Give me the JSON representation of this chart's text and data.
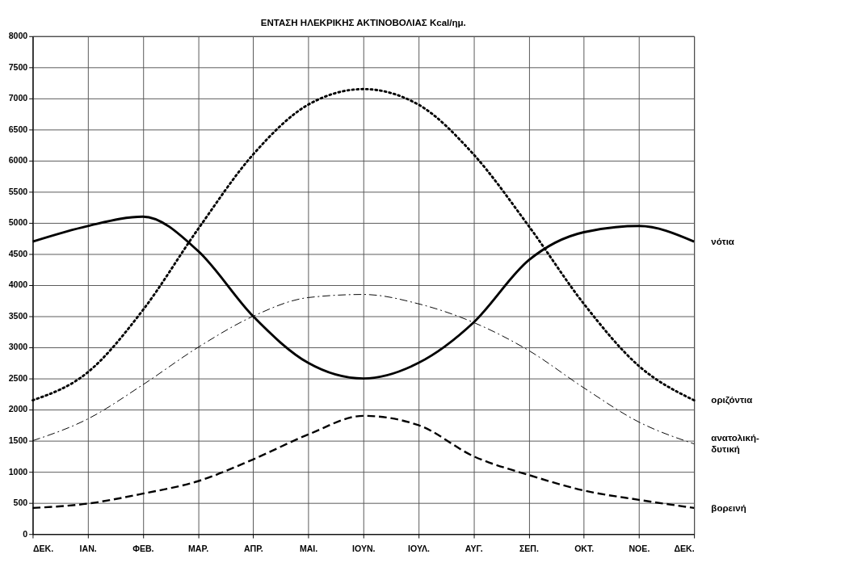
{
  "chart_data": {
    "type": "line",
    "title": "ΕΝΤΑΣΗ ΗΛΕΚΡΙΚΗΣ ΑΚΤΙΝΟΒΟΛΙΑΣ Kcal/ημ.",
    "categories": [
      "ΔΕΚ.",
      "ΙΑΝ.",
      "ΦΕΒ.",
      "ΜΑΡ.",
      "ΑΠΡ.",
      "ΜΑΙ.",
      "ΙΟΥΝ.",
      "ΙΟΥΛ.",
      "ΑΥΓ.",
      "ΣΕΠ.",
      "ΟΚΤ.",
      "ΝΟΕ.",
      "ΔΕΚ."
    ],
    "series": [
      {
        "name": "νότια",
        "color": "#000000",
        "line_style": "solid",
        "values": [
          4700,
          4950,
          5100,
          4550,
          3500,
          2750,
          2500,
          2750,
          3400,
          4400,
          4850,
          4950,
          4700
        ]
      },
      {
        "name": "οριζόντια",
        "color": "#000000",
        "line_style": "dotted",
        "values": [
          2150,
          2600,
          3600,
          4900,
          6100,
          6900,
          7150,
          6900,
          6100,
          4950,
          3700,
          2700,
          2150
        ]
      },
      {
        "name": "ανατολική-δυτική",
        "color": "#000000",
        "line_style": "dashdot",
        "values": [
          1500,
          1850,
          2400,
          3000,
          3500,
          3800,
          3850,
          3700,
          3400,
          2950,
          2350,
          1800,
          1450
        ]
      },
      {
        "name": "βορεινή",
        "color": "#000000",
        "line_style": "dashed",
        "values": [
          420,
          490,
          650,
          850,
          1200,
          1600,
          1900,
          1750,
          1250,
          950,
          700,
          550,
          420
        ]
      }
    ],
    "ylim": [
      0,
      8000
    ],
    "yticks": [
      0,
      500,
      1000,
      1500,
      2000,
      2500,
      3000,
      3500,
      4000,
      4500,
      5000,
      5500,
      6000,
      6500,
      7000,
      7500,
      8000
    ],
    "grid": true,
    "legend": false,
    "marker": "none"
  }
}
